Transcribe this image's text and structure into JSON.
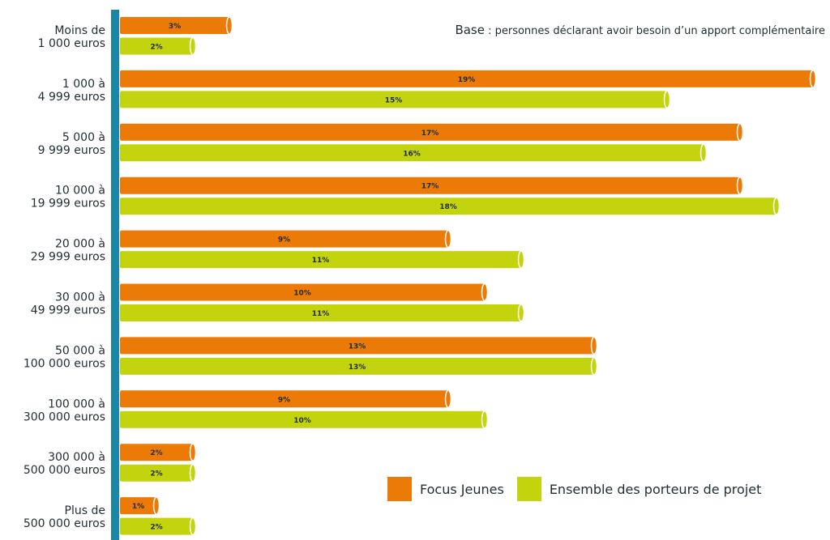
{
  "note": {
    "prefix": "Base",
    "text": " : personnes déclarant avoir besoin d’un apport complémentaire"
  },
  "colors": {
    "axis": "#1a86a8",
    "focus": "#ec7a06",
    "ensemble": "#c3d30d",
    "text": "#1f2d33"
  },
  "legend": [
    {
      "label": "Focus Jeunes",
      "color": "#ec7a06"
    },
    {
      "label": "Ensemble des porteurs de projet",
      "color": "#c3d30d"
    }
  ],
  "chart_data": {
    "type": "bar",
    "orientation": "horizontal",
    "categories": [
      [
        "Moins de",
        "1 000 euros"
      ],
      [
        "1 000 à",
        "4 999 euros"
      ],
      [
        "5 000 à",
        "9 999 euros"
      ],
      [
        "10 000 à",
        "19 999 euros"
      ],
      [
        "20 000 à",
        "29 999 euros"
      ],
      [
        "30 000 à",
        "49 999 euros"
      ],
      [
        "50 000 à",
        "100 000 euros"
      ],
      [
        "100 000 à",
        "300 000 euros"
      ],
      [
        "300 000 à",
        "500 000 euros"
      ],
      [
        "Plus de",
        "500 000 euros"
      ]
    ],
    "series": [
      {
        "name": "Focus Jeunes",
        "color": "#ec7a06",
        "values": [
          3,
          19,
          17,
          17,
          9,
          10,
          13,
          9,
          2,
          1
        ],
        "labels": [
          "3%",
          "19%",
          "17%",
          "17%",
          "9%",
          "10%",
          "13%",
          "9%",
          "2%",
          "1%"
        ]
      },
      {
        "name": "Ensemble des porteurs de projet",
        "color": "#c3d30d",
        "values": [
          2,
          15,
          16,
          18,
          11,
          11,
          13,
          10,
          2,
          2
        ],
        "labels": [
          "2%",
          "15%",
          "16%",
          "18%",
          "11%",
          "11%",
          "13%",
          "10%",
          "2%",
          "2%"
        ]
      }
    ],
    "xlim": [
      0,
      19
    ],
    "grid": false,
    "legend_position": "bottom-right"
  }
}
